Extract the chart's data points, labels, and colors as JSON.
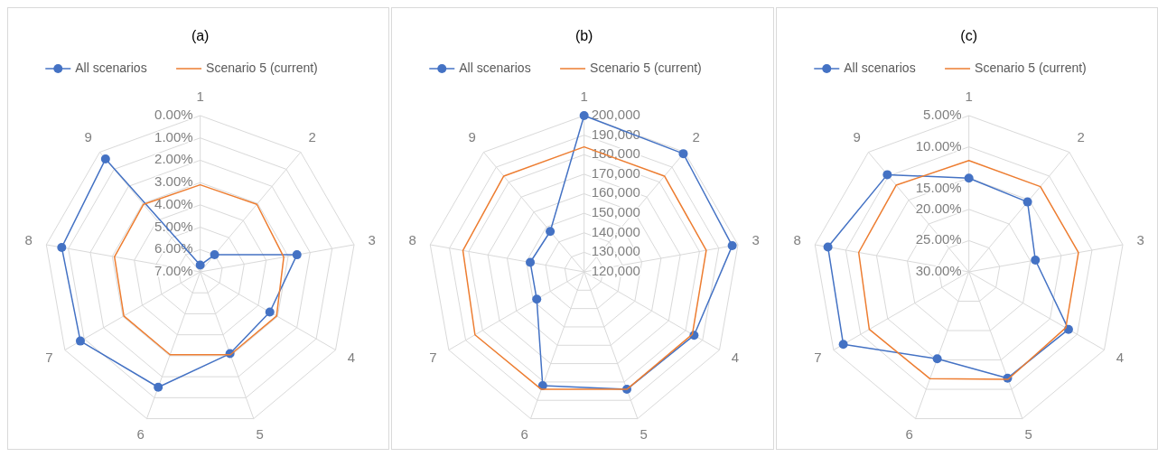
{
  "chart_data": [
    {
      "type": "radar",
      "title": "(a)",
      "categories": [
        "1",
        "2",
        "3",
        "4",
        "5",
        "6",
        "7",
        "8",
        "9"
      ],
      "legend": "top",
      "grid": true,
      "ylim": [
        7,
        0
      ],
      "yticks": [
        {
          "value": 0,
          "label": "0.00%"
        },
        {
          "value": 1,
          "label": "1.00%"
        },
        {
          "value": 2,
          "label": "2.00%"
        },
        {
          "value": 3,
          "label": "3.00%"
        },
        {
          "value": 4,
          "label": "4.00%"
        },
        {
          "value": 5,
          "label": "5.00%"
        },
        {
          "value": 6,
          "label": "6.00%"
        },
        {
          "value": 7,
          "label": "7.00%"
        }
      ],
      "series": [
        {
          "name": "All scenarios",
          "color": "#4472c4",
          "marker": "circle",
          "values": [
            6.7,
            6.0,
            2.6,
            3.4,
            3.1,
            1.5,
            0.8,
            0.7,
            0.4
          ]
        },
        {
          "name": "Scenario 5 (current)",
          "color": "#ed7d31",
          "marker": "none",
          "values": [
            3.1,
            3.05,
            3.2,
            3.05,
            3.05,
            3.05,
            3.05,
            3.1,
            3.05
          ]
        }
      ]
    },
    {
      "type": "radar",
      "title": "(b)",
      "categories": [
        "1",
        "2",
        "3",
        "4",
        "5",
        "6",
        "7",
        "8",
        "9"
      ],
      "legend": "top",
      "grid": true,
      "ylim": [
        120000,
        200000
      ],
      "yticks": [
        {
          "value": 120000,
          "label": "120,000"
        },
        {
          "value": 130000,
          "label": "130,000"
        },
        {
          "value": 140000,
          "label": "140,000"
        },
        {
          "value": 150000,
          "label": "150,000"
        },
        {
          "value": 160000,
          "label": "160,000"
        },
        {
          "value": 170000,
          "label": "170,000"
        },
        {
          "value": 180000,
          "label": "180,000"
        },
        {
          "value": 190000,
          "label": "190,000"
        },
        {
          "value": 200000,
          "label": "200,000"
        }
      ],
      "series": [
        {
          "name": "All scenarios",
          "color": "#4472c4",
          "marker": "circle",
          "values": [
            200000,
            199000,
            197000,
            185000,
            184000,
            182000,
            148000,
            148000,
            147000
          ]
        },
        {
          "name": "Scenario 5 (current)",
          "color": "#ed7d31",
          "marker": "none",
          "values": [
            184000,
            184000,
            183500,
            184000,
            184000,
            184000,
            184500,
            183000,
            184000
          ]
        }
      ]
    },
    {
      "type": "radar",
      "title": "(c)",
      "categories": [
        "1",
        "2",
        "3",
        "4",
        "5",
        "6",
        "7",
        "8",
        "9"
      ],
      "legend": "top",
      "grid": true,
      "ylim": [
        30,
        5
      ],
      "yticks": [
        {
          "value": 5,
          "label": "5.00%"
        },
        {
          "value": 10,
          "label": "10.00%"
        },
        {
          "value": 15,
          "label": "15.00%"
        },
        {
          "value": 20,
          "label": "20.00%"
        },
        {
          "value": 25,
          "label": "25.00%"
        },
        {
          "value": 30,
          "label": "30.00%"
        }
      ],
      "series": [
        {
          "name": "All scenarios",
          "color": "#4472c4",
          "marker": "circle",
          "values": [
            15.0,
            15.4,
            19.2,
            11.6,
            11.9,
            15.2,
            6.8,
            7.1,
            9.7
          ]
        },
        {
          "name": "Scenario 5 (current)",
          "color": "#ed7d31",
          "marker": "none",
          "values": [
            12.2,
            12.2,
            12.2,
            12.1,
            11.7,
            11.8,
            11.6,
            12.1,
            11.9
          ]
        }
      ]
    }
  ]
}
